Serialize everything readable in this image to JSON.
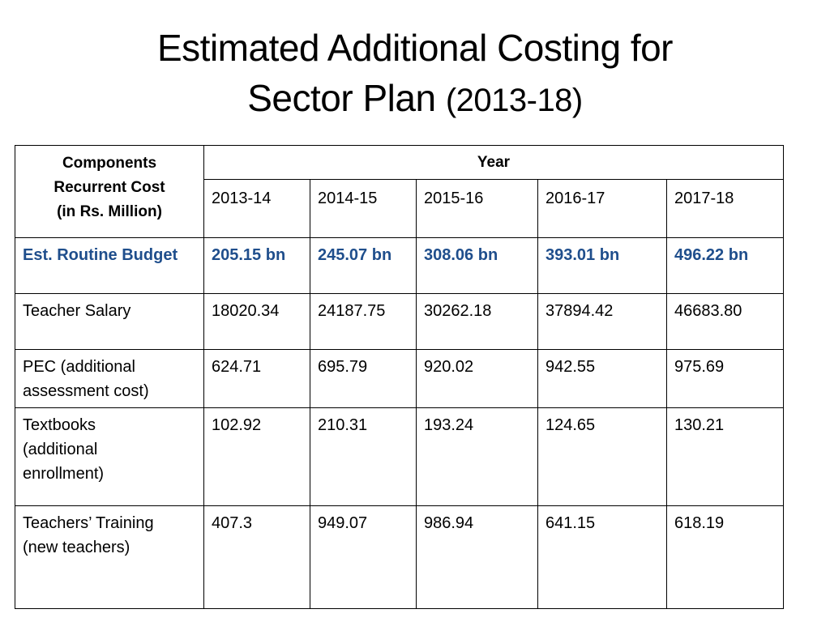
{
  "title": {
    "line1": "Estimated Additional Costing for",
    "line2_text": "Sector Plan ",
    "line2_years": "(2013-18)"
  },
  "table": {
    "components_header": {
      "line1": "Components",
      "line2": "Recurrent Cost",
      "line3": "(in Rs. Million)"
    },
    "year_header": "Year",
    "years": [
      "2013-14",
      "2014-15",
      "2015-16",
      "2016-17",
      "2017-18"
    ],
    "rows": [
      {
        "label_lines": [
          "Est. Routine Budget"
        ],
        "values": [
          "205.15 bn",
          "245.07 bn",
          "308.06 bn",
          "393.01 bn",
          "496.22 bn"
        ],
        "highlight": true,
        "highlight_color": "#1f4e8c"
      },
      {
        "label_lines": [
          "Teacher Salary"
        ],
        "values": [
          "18020.34",
          "24187.75",
          "30262.18",
          "37894.42",
          "46683.80"
        ]
      },
      {
        "label_lines": [
          "PEC (additional",
          "assessment cost)"
        ],
        "values": [
          "624.71",
          "695.79",
          "920.02",
          "942.55",
          "975.69"
        ]
      },
      {
        "label_lines": [
          "Textbooks",
          "(additional",
          "enrollment)"
        ],
        "values": [
          "102.92",
          "210.31",
          "193.24",
          "124.65",
          "130.21"
        ]
      },
      {
        "label_lines": [
          "Teachers’ Training",
          "(new teachers)"
        ],
        "values": [
          "407.3",
          "949.07",
          "986.94",
          "641.15",
          "618.19"
        ]
      }
    ]
  }
}
